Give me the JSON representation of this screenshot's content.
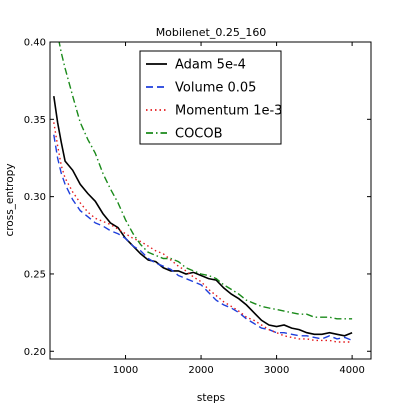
{
  "chart_data": {
    "type": "line",
    "title": "Mobilenet_0.25_160",
    "xlabel": "steps",
    "ylabel": "cross_entropy",
    "xlim": [
      0,
      4250
    ],
    "ylim": [
      0.195,
      0.4
    ],
    "xticks": [
      1000,
      2000,
      3000,
      4000
    ],
    "xtick_labels": [
      "1000",
      "2000",
      "3000",
      "4000"
    ],
    "yticks": [
      0.2,
      0.25,
      0.3,
      0.35,
      0.4
    ],
    "ytick_labels": [
      "0.20",
      "0.25",
      "0.30",
      "0.35",
      "0.40"
    ],
    "grid": false,
    "legend_position": "top-center",
    "series": [
      {
        "name": "Adam 5e-4",
        "color": "#000000",
        "dash": "solid",
        "x": [
          50,
          100,
          150,
          200,
          300,
          400,
          500,
          600,
          700,
          800,
          900,
          1000,
          1100,
          1200,
          1300,
          1400,
          1500,
          1600,
          1700,
          1800,
          1900,
          2000,
          2100,
          2200,
          2300,
          2400,
          2500,
          2600,
          2700,
          2800,
          2900,
          3000,
          3100,
          3200,
          3300,
          3400,
          3500,
          3600,
          3700,
          3800,
          3900,
          4000
        ],
        "y": [
          0.365,
          0.348,
          0.335,
          0.323,
          0.317,
          0.308,
          0.302,
          0.297,
          0.289,
          0.283,
          0.28,
          0.273,
          0.268,
          0.263,
          0.259,
          0.258,
          0.254,
          0.252,
          0.252,
          0.25,
          0.251,
          0.249,
          0.247,
          0.246,
          0.241,
          0.237,
          0.234,
          0.23,
          0.225,
          0.22,
          0.217,
          0.216,
          0.217,
          0.215,
          0.214,
          0.212,
          0.211,
          0.211,
          0.212,
          0.211,
          0.21,
          0.212
        ]
      },
      {
        "name": "Volume 0.05",
        "color": "#1f3fdb",
        "dash": "dashed",
        "x": [
          50,
          100,
          150,
          200,
          300,
          400,
          500,
          600,
          700,
          800,
          900,
          1000,
          1100,
          1200,
          1300,
          1400,
          1500,
          1600,
          1700,
          1800,
          1900,
          2000,
          2100,
          2200,
          2300,
          2400,
          2500,
          2600,
          2700,
          2800,
          2900,
          3000,
          3100,
          3200,
          3300,
          3400,
          3500,
          3600,
          3700,
          3800,
          3900,
          4000
        ],
        "y": [
          0.34,
          0.325,
          0.315,
          0.308,
          0.298,
          0.291,
          0.287,
          0.283,
          0.281,
          0.278,
          0.276,
          0.273,
          0.268,
          0.265,
          0.26,
          0.257,
          0.255,
          0.253,
          0.249,
          0.247,
          0.245,
          0.243,
          0.238,
          0.233,
          0.23,
          0.228,
          0.225,
          0.221,
          0.218,
          0.215,
          0.214,
          0.212,
          0.212,
          0.211,
          0.21,
          0.21,
          0.209,
          0.208,
          0.21,
          0.208,
          0.209,
          0.207
        ]
      },
      {
        "name": "Momentum 1e-3",
        "color": "#e41a1c",
        "dash": "dotted",
        "x": [
          50,
          100,
          150,
          200,
          300,
          400,
          500,
          600,
          700,
          800,
          900,
          1000,
          1100,
          1200,
          1300,
          1400,
          1500,
          1600,
          1700,
          1800,
          1900,
          2000,
          2100,
          2200,
          2300,
          2400,
          2500,
          2600,
          2700,
          2800,
          2900,
          3000,
          3100,
          3200,
          3300,
          3400,
          3500,
          3600,
          3700,
          3800,
          3900,
          4000
        ],
        "y": [
          0.348,
          0.333,
          0.32,
          0.312,
          0.303,
          0.296,
          0.29,
          0.286,
          0.284,
          0.282,
          0.279,
          0.276,
          0.273,
          0.271,
          0.268,
          0.265,
          0.263,
          0.259,
          0.255,
          0.252,
          0.248,
          0.245,
          0.24,
          0.236,
          0.232,
          0.229,
          0.226,
          0.222,
          0.22,
          0.217,
          0.214,
          0.212,
          0.21,
          0.209,
          0.208,
          0.208,
          0.207,
          0.207,
          0.207,
          0.206,
          0.206,
          0.206
        ]
      },
      {
        "name": "COCOB",
        "color": "#1a8a1a",
        "dash": "dashdot",
        "x": [
          50,
          100,
          150,
          200,
          300,
          400,
          500,
          600,
          700,
          800,
          900,
          1000,
          1100,
          1200,
          1300,
          1400,
          1500,
          1600,
          1700,
          1800,
          1900,
          2000,
          2100,
          2200,
          2300,
          2400,
          2500,
          2600,
          2700,
          2800,
          2900,
          3000,
          3100,
          3200,
          3300,
          3400,
          3500,
          3600,
          3700,
          3800,
          3900,
          4000
        ],
        "y": [
          0.42,
          0.405,
          0.393,
          0.383,
          0.365,
          0.348,
          0.337,
          0.328,
          0.315,
          0.305,
          0.296,
          0.285,
          0.276,
          0.269,
          0.264,
          0.262,
          0.26,
          0.26,
          0.258,
          0.254,
          0.252,
          0.25,
          0.249,
          0.247,
          0.243,
          0.24,
          0.237,
          0.233,
          0.231,
          0.229,
          0.228,
          0.227,
          0.226,
          0.225,
          0.224,
          0.224,
          0.222,
          0.222,
          0.222,
          0.221,
          0.221,
          0.221
        ]
      }
    ]
  }
}
